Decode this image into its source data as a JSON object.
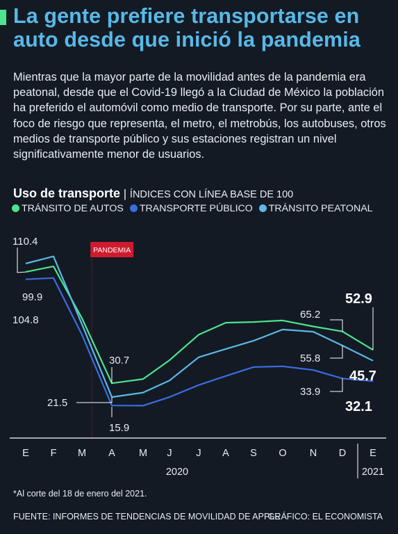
{
  "title": "La gente prefiere transportarse en auto desde que inició la pandemia",
  "intro": "Mientras que la mayor parte de la movilidad antes de la pandemia era peatonal, desde que el Covid-19 llegó a la Ciudad de México la población ha preferido el automóvil como medio de transporte. Por su parte, ante el foco de riesgo que representa, el metro, el metrobús, los autobuses, otros medios de transporte público y sus estaciones registran un nivel significativamente menor de usuarios.",
  "subhead": {
    "main": "Uso de transporte",
    "separator": "|",
    "sub": "ÍNDICES CON LÍNEA BASE DE 100"
  },
  "colors": {
    "background": "#131a24",
    "accent": "#4ee38e",
    "title": "#57b9e8",
    "autos": "#4ee38e",
    "publico": "#3b6de0",
    "peatonal": "#5cb8e6",
    "pandemia": "#d11a2e"
  },
  "chart_data": {
    "type": "line",
    "x": [
      "E",
      "F",
      "M",
      "A",
      "M",
      "J",
      "J",
      "A",
      "S",
      "O",
      "N",
      "D",
      "E"
    ],
    "year_labels": [
      "2020",
      "2021"
    ],
    "series": [
      {
        "key": "autos",
        "name": "TRÁNSITO DE AUTOS",
        "values": [
          104.8,
          108.5,
          74,
          30.7,
          33.5,
          46,
          63,
          71,
          71.5,
          72.5,
          68.5,
          65.2,
          52.9
        ]
      },
      {
        "key": "publico",
        "name": "TRANSPORTE PÚBLICO",
        "values": [
          99.9,
          100.8,
          63,
          15.9,
          15.8,
          21.5,
          29.5,
          35.5,
          41.5,
          42,
          39.5,
          33.9,
          32.1
        ]
      },
      {
        "key": "peatonal",
        "name": "TRÁNSITO PEATONAL",
        "values": [
          110.4,
          115.2,
          70,
          21.5,
          24.5,
          32.5,
          48,
          53.5,
          59,
          66.5,
          65,
          55.8,
          45.7
        ]
      }
    ],
    "annotation": {
      "label": "PANDEMIA",
      "x_index": 2.4
    },
    "value_labels": {
      "autos_start": "104.8",
      "publico_start": "99.9",
      "peatonal_start": "110.4",
      "autos_low": "30.7",
      "peatonal_low": "21.5",
      "publico_low": "15.9",
      "autos_dec": "65.2",
      "peatonal_dec": "55.8",
      "publico_dec": "33.9",
      "autos_end": "52.9",
      "peatonal_end": "45.7",
      "publico_end": "32.1"
    }
  },
  "footnote": "*Al corte del 18 de enero del 2021.",
  "source": "FUENTE: INFORMES DE TENDENCIAS DE MOVILIDAD DE APPLE",
  "credit": "GRÁFICO: EL ECONOMISTA"
}
